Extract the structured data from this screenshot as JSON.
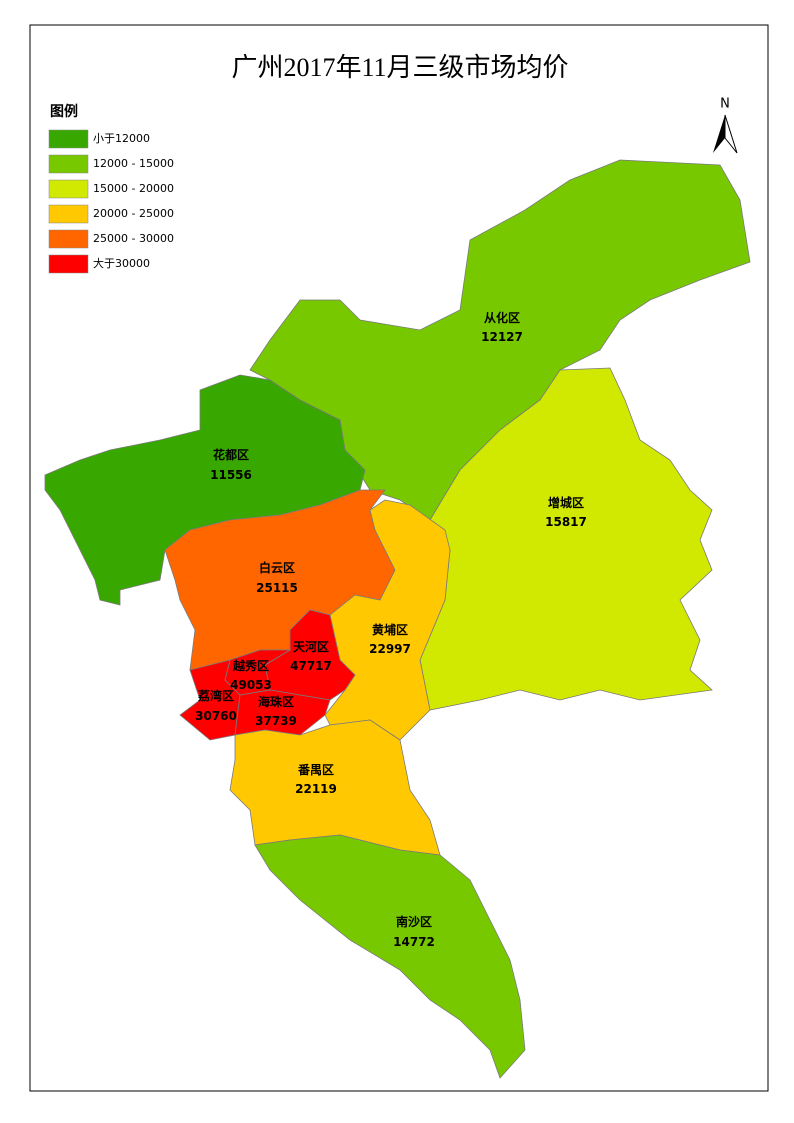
{
  "title": "广州2017年11月三级市场均价",
  "north": "N",
  "legend": {
    "title": "图例",
    "items": [
      {
        "label": "小于12000",
        "color": "#38a800"
      },
      {
        "label": "12000 - 15000",
        "color": "#78c800"
      },
      {
        "label": "15000 - 20000",
        "color": "#d1e800"
      },
      {
        "label": "20000 - 25000",
        "color": "#ffc800"
      },
      {
        "label": "25000 - 30000",
        "color": "#ff6600"
      },
      {
        "label": "大于30000",
        "color": "#ff0000"
      }
    ]
  },
  "districts": [
    {
      "name": "从化区",
      "value": 12127,
      "color": "#78c800"
    },
    {
      "name": "增城区",
      "value": 15817,
      "color": "#d1e800"
    },
    {
      "name": "花都区",
      "value": 11556,
      "color": "#38a800"
    },
    {
      "name": "白云区",
      "value": 25115,
      "color": "#ff6600"
    },
    {
      "name": "黄埔区",
      "value": 22997,
      "color": "#ffc800"
    },
    {
      "name": "天河区",
      "value": 47717,
      "color": "#ff0000"
    },
    {
      "name": "越秀区",
      "value": 49053,
      "color": "#ff0000"
    },
    {
      "name": "荔湾区",
      "value": 30760,
      "color": "#ff0000"
    },
    {
      "name": "海珠区",
      "value": 37739,
      "color": "#ff0000"
    },
    {
      "name": "番禺区",
      "value": 22119,
      "color": "#ffc800"
    },
    {
      "name": "南沙区",
      "value": 14772,
      "color": "#78c800"
    }
  ]
}
